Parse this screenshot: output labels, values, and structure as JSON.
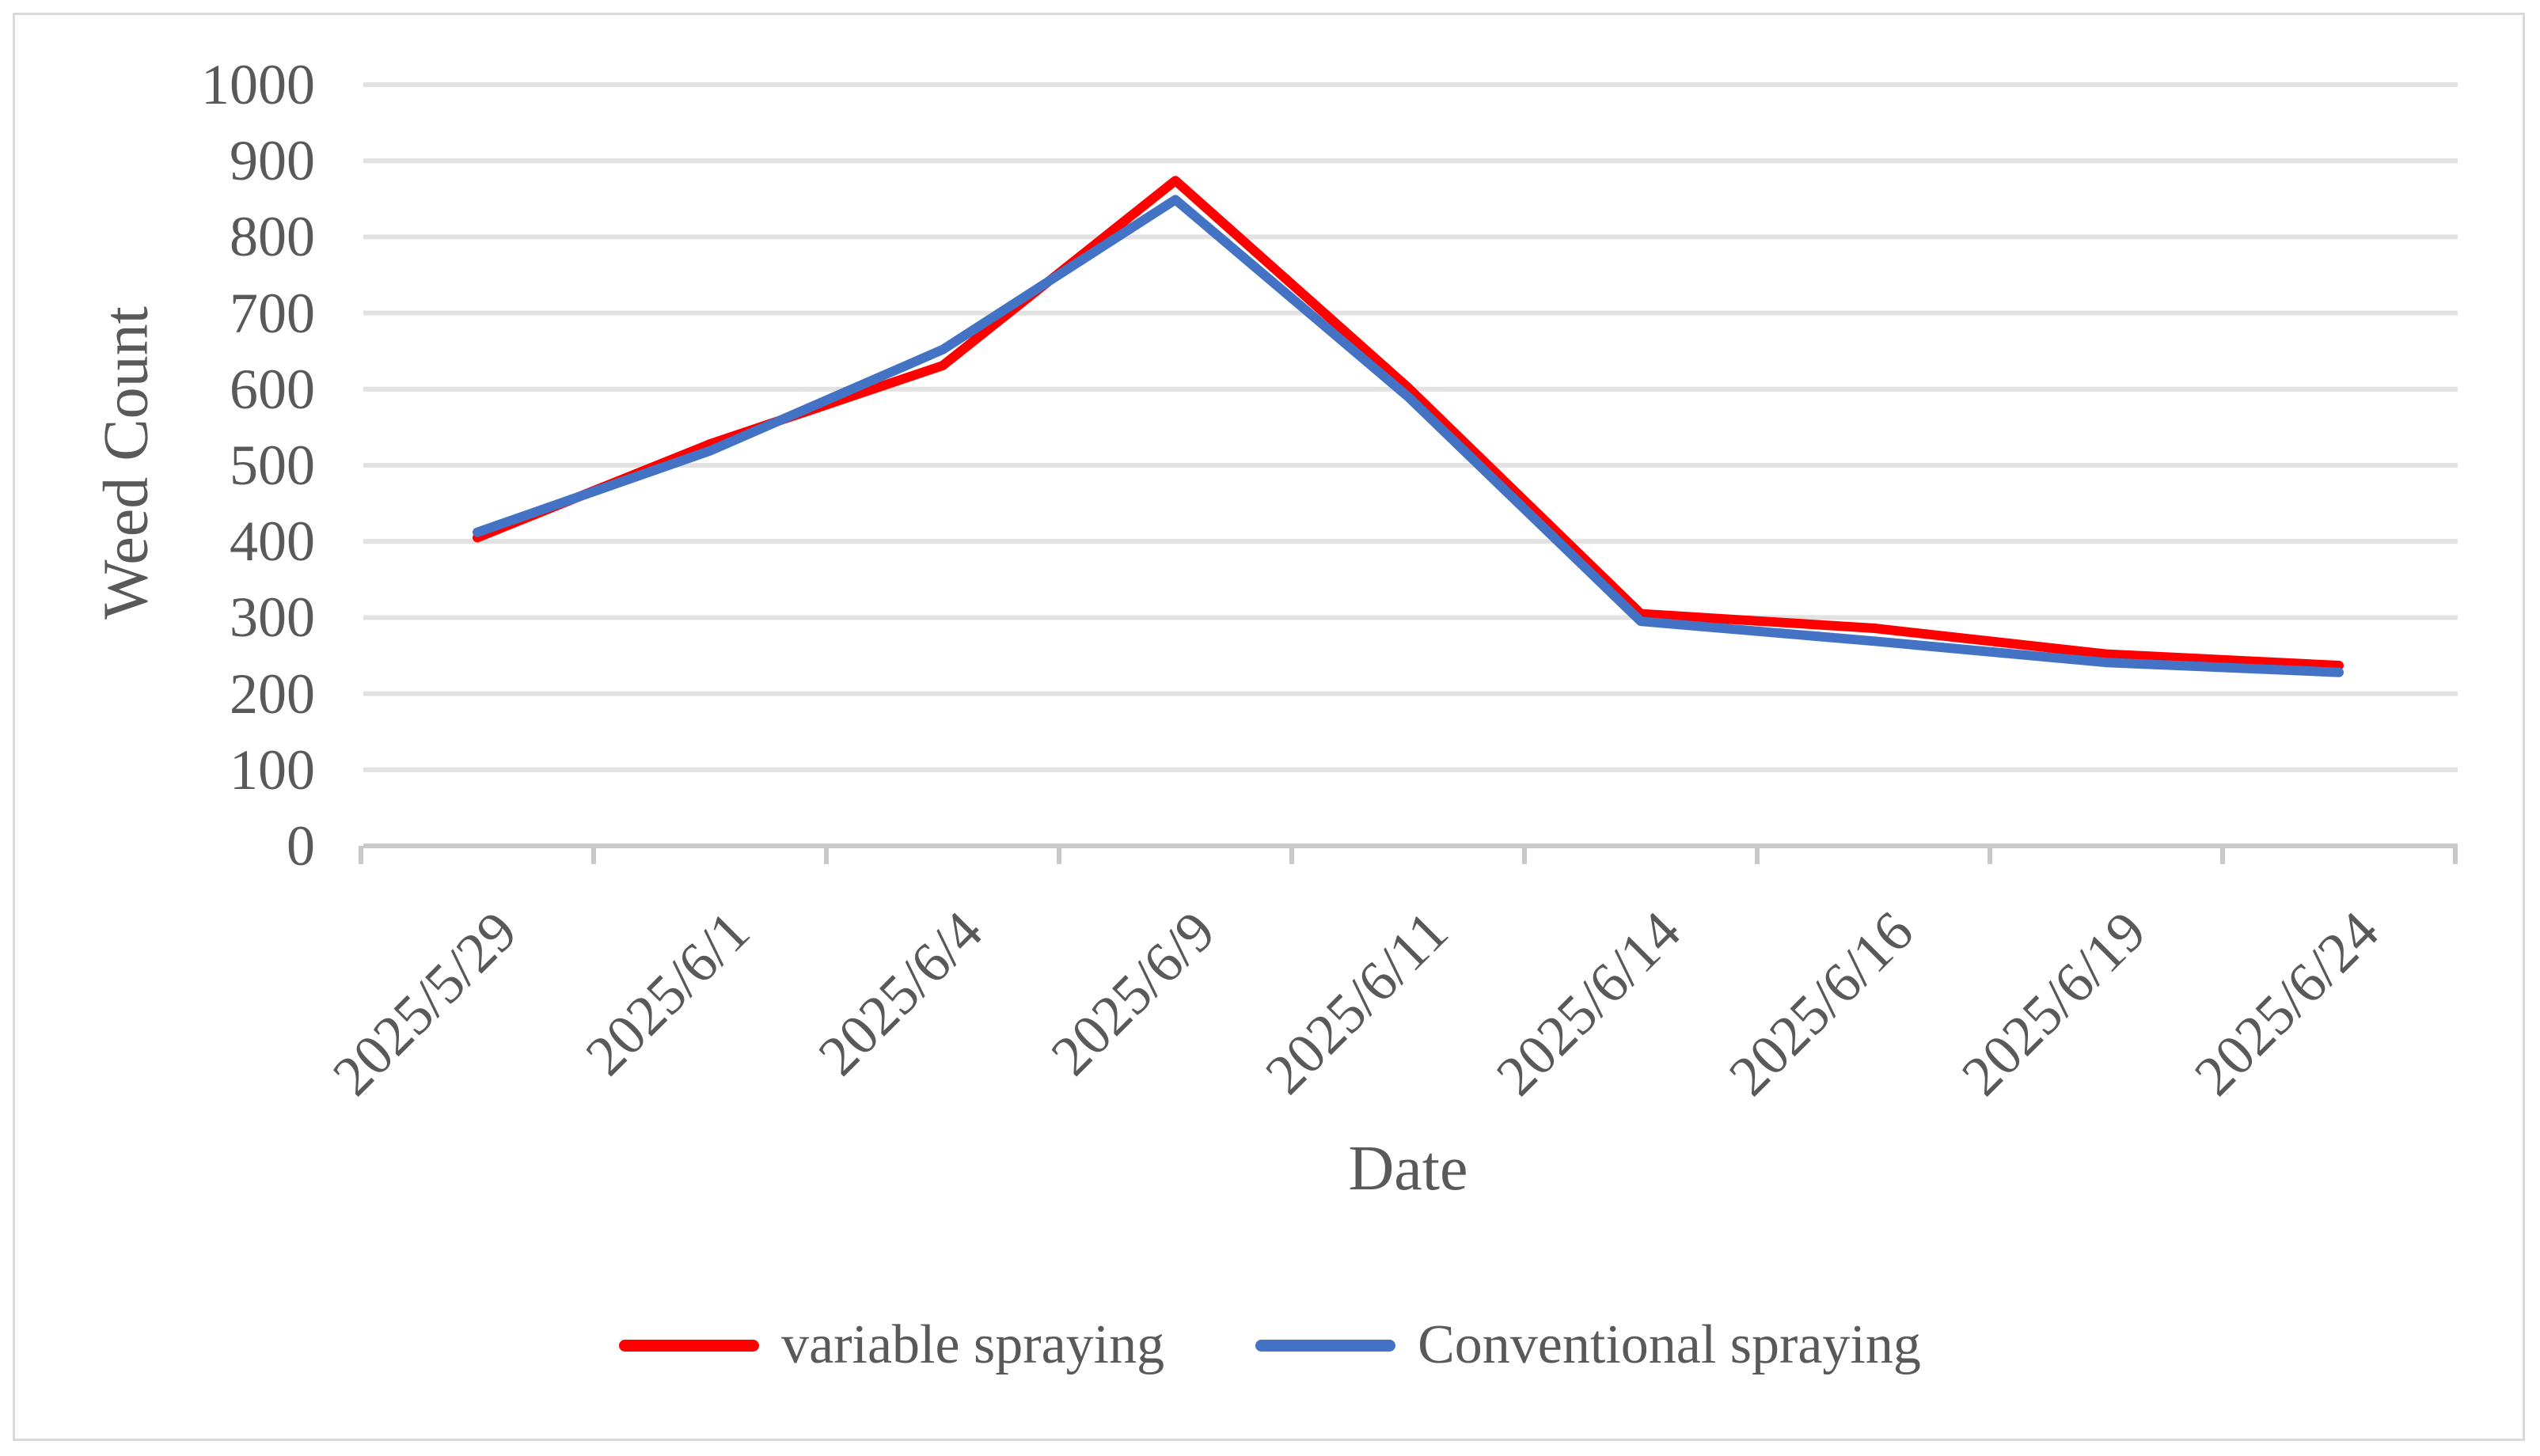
{
  "chart_data": {
    "type": "line",
    "title": "",
    "xlabel": "Date",
    "ylabel": "Weed Count",
    "categories": [
      "2025/5/29",
      "2025/6/1",
      "2025/6/4",
      "2025/6/9",
      "2025/6/11",
      "2025/6/14",
      "2025/6/16",
      "2025/6/19",
      "2025/6/24"
    ],
    "series": [
      {
        "name": "variable spraying",
        "color": "#FF0000",
        "values": [
          405,
          528,
          631,
          874,
          602,
          305,
          286,
          252,
          237
        ]
      },
      {
        "name": "Conventional spraying",
        "color": "#4472C4",
        "values": [
          412,
          519,
          652,
          849,
          590,
          295,
          269,
          241,
          228
        ]
      }
    ],
    "ylim": [
      0,
      1000
    ],
    "yticks": [
      0,
      100,
      200,
      300,
      400,
      500,
      600,
      700,
      800,
      900,
      1000
    ],
    "grid": "horizontal-only",
    "legend_position": "bottom"
  },
  "colors": {
    "background": "#FFFFFF",
    "chart_border": "#D9D9D9",
    "gridline": "#E2E2E2",
    "axis_line": "#C9C9C9",
    "axis_text": "#595959"
  }
}
